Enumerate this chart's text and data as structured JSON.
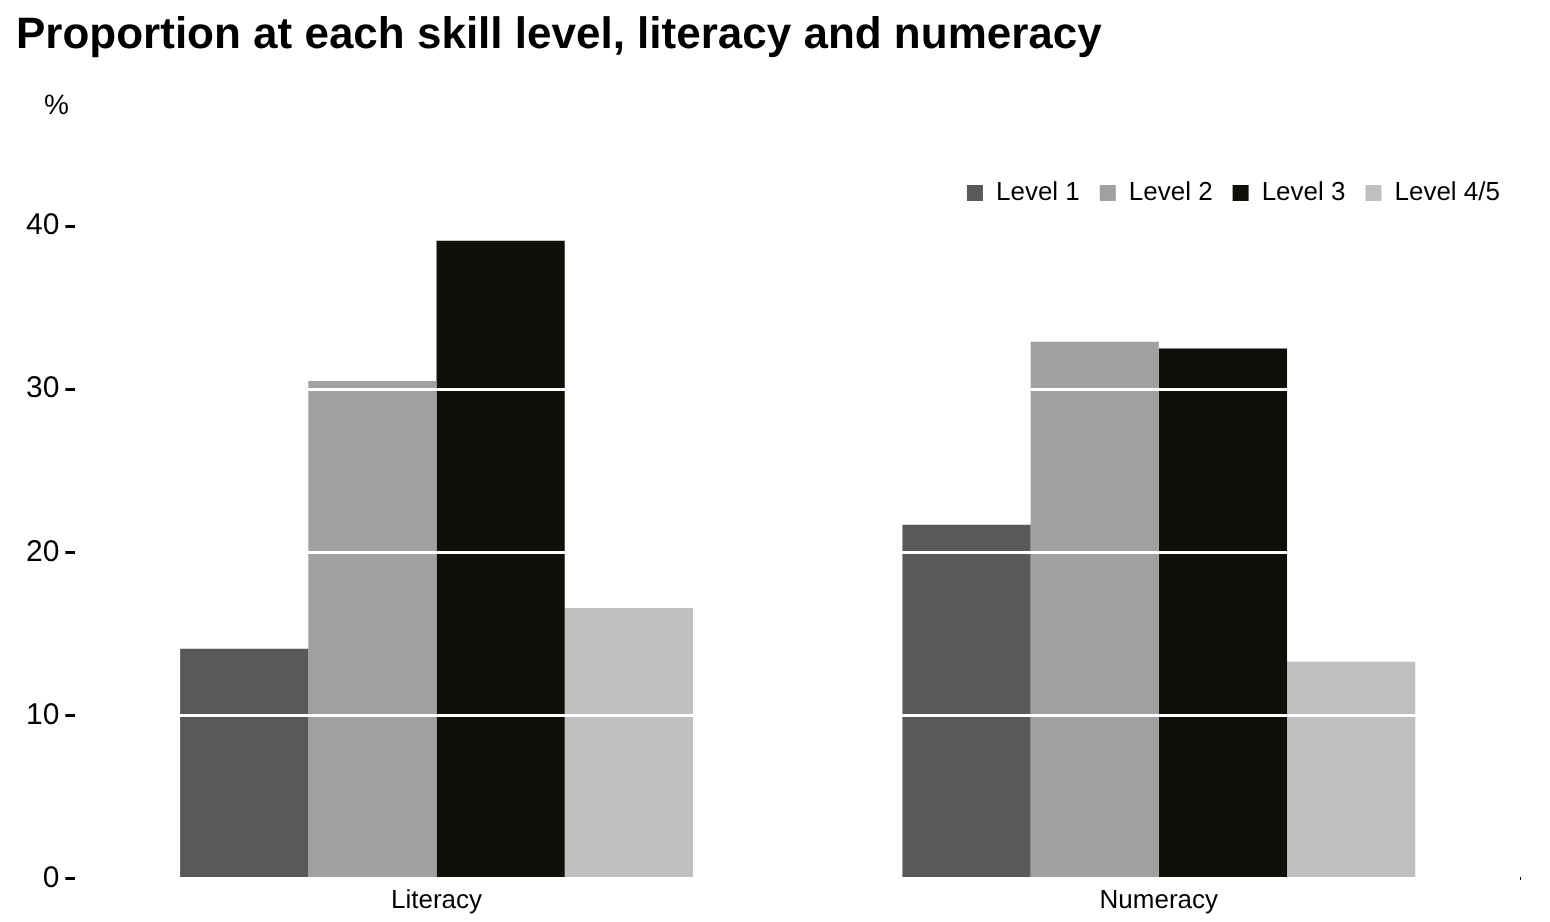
{
  "chart_data": {
    "type": "bar",
    "title": "Proportion at each skill level, literacy and numeracy",
    "ylabel": "%",
    "categories": [
      "Literacy",
      "Numeracy"
    ],
    "series": [
      {
        "name": "Level 1",
        "color": "#595959",
        "values": [
          14.1,
          21.7
        ]
      },
      {
        "name": "Level 2",
        "color": "#a0a0a0",
        "values": [
          30.5,
          32.9
        ]
      },
      {
        "name": "Level 3",
        "color": "#10100a",
        "values": [
          39.1,
          32.5
        ]
      },
      {
        "name": "Level 4/5",
        "color": "#c0c0c0",
        "values": [
          16.6,
          13.3
        ]
      }
    ],
    "ylim": [
      0,
      40
    ],
    "yticks": [
      0,
      10,
      20,
      30,
      40
    ],
    "grid": "y",
    "legend": "top right"
  }
}
